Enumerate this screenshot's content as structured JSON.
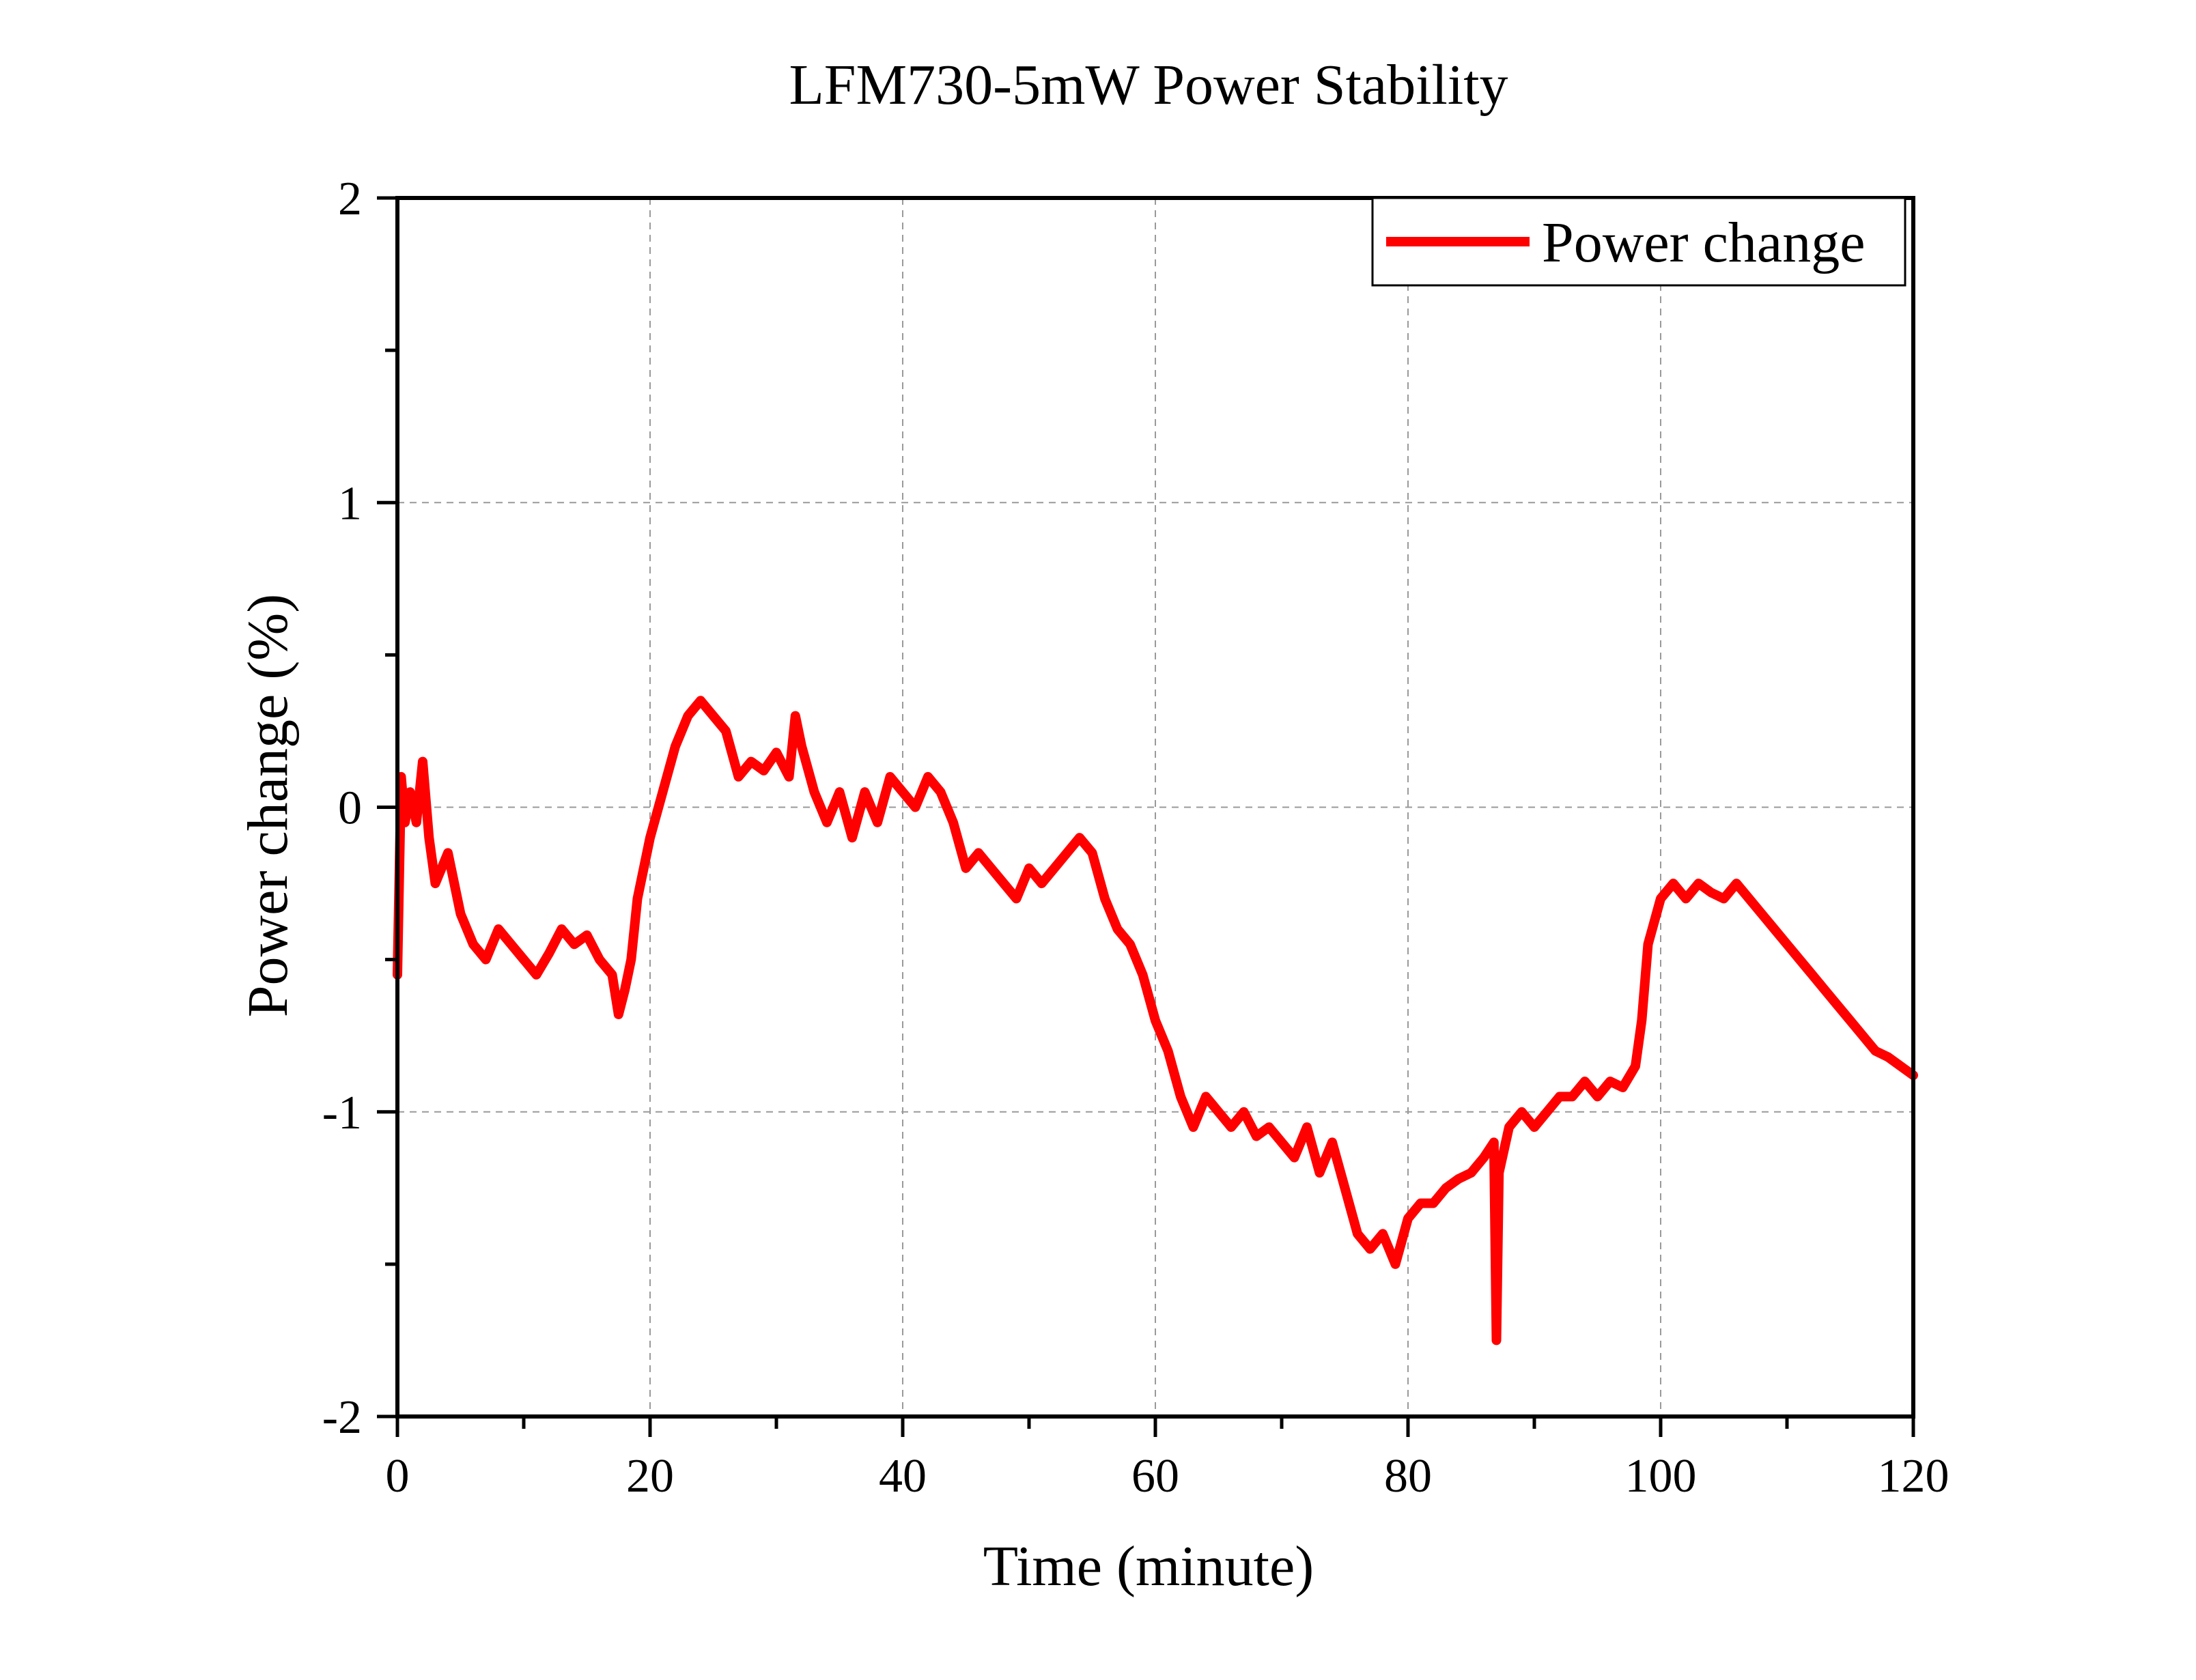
{
  "chart_data": {
    "type": "line",
    "title": "LFM730-5mW Power Stability",
    "xlabel": "Time (minute)",
    "ylabel": "Power change (%)",
    "xlim": [
      0,
      120
    ],
    "ylim": [
      -2,
      2
    ],
    "xticks": [
      0,
      20,
      40,
      60,
      80,
      100,
      120
    ],
    "xtick_labels": [
      "0",
      "20",
      "40",
      "60",
      "80",
      "100",
      "120"
    ],
    "yticks": [
      -2,
      -1,
      0,
      1,
      2
    ],
    "ytick_labels": [
      "-2",
      "-1",
      "0",
      "1",
      "2"
    ],
    "grid": true,
    "legend_position": "top-right",
    "series": [
      {
        "name": "Power change",
        "color": "#ff0000",
        "x": [
          0,
          0.3,
          0.6,
          1,
          1.5,
          2,
          2.5,
          3,
          4,
          5,
          6,
          7,
          8,
          9,
          10,
          11,
          12,
          13,
          14,
          15,
          16,
          17,
          17.5,
          18,
          18.5,
          19,
          20,
          21,
          22,
          23,
          24,
          25,
          26,
          27,
          28,
          29,
          30,
          31,
          31.5,
          32,
          33,
          34,
          35,
          36,
          37,
          38,
          39,
          40,
          41,
          42,
          43,
          44,
          45,
          46,
          47,
          48,
          49,
          50,
          51,
          52,
          53,
          54,
          55,
          56,
          57,
          58,
          59,
          60,
          61,
          62,
          63,
          64,
          65,
          66,
          67,
          68,
          69,
          70,
          71,
          72,
          73,
          74,
          75,
          76,
          77,
          78,
          79,
          80,
          81,
          82,
          83,
          84,
          85,
          86,
          86.8,
          87,
          87.2,
          88,
          89,
          90,
          91,
          92,
          93,
          94,
          95,
          96,
          97,
          98,
          98.5,
          99,
          100,
          101,
          102,
          103,
          104,
          105,
          106,
          107,
          108,
          109,
          110,
          111,
          112,
          113,
          114,
          115,
          116,
          117,
          118,
          119,
          120
        ],
        "y": [
          -0.55,
          0.1,
          -0.05,
          0.05,
          -0.05,
          0.15,
          -0.1,
          -0.25,
          -0.15,
          -0.35,
          -0.45,
          -0.5,
          -0.4,
          -0.45,
          -0.5,
          -0.55,
          -0.48,
          -0.4,
          -0.45,
          -0.42,
          -0.5,
          -0.55,
          -0.68,
          -0.6,
          -0.5,
          -0.3,
          -0.1,
          0.05,
          0.2,
          0.3,
          0.35,
          0.3,
          0.25,
          0.1,
          0.15,
          0.12,
          0.18,
          0.1,
          0.3,
          0.2,
          0.05,
          -0.05,
          0.05,
          -0.1,
          0.05,
          -0.05,
          0.1,
          0.05,
          0.0,
          0.1,
          0.05,
          -0.05,
          -0.2,
          -0.15,
          -0.2,
          -0.25,
          -0.3,
          -0.2,
          -0.25,
          -0.2,
          -0.15,
          -0.1,
          -0.15,
          -0.3,
          -0.4,
          -0.45,
          -0.55,
          -0.7,
          -0.8,
          -0.95,
          -1.05,
          -0.95,
          -1.0,
          -1.05,
          -1.0,
          -1.08,
          -1.05,
          -1.1,
          -1.15,
          -1.05,
          -1.2,
          -1.1,
          -1.25,
          -1.4,
          -1.45,
          -1.4,
          -1.5,
          -1.35,
          -1.3,
          -1.3,
          -1.25,
          -1.22,
          -1.2,
          -1.15,
          -1.1,
          -1.75,
          -1.2,
          -1.05,
          -1.0,
          -1.05,
          -1.0,
          -0.95,
          -0.95,
          -0.9,
          -0.95,
          -0.9,
          -0.92,
          -0.85,
          -0.7,
          -0.45,
          -0.3,
          -0.25,
          -0.3,
          -0.25,
          -0.28,
          -0.3,
          -0.25,
          -0.3,
          -0.35,
          -0.4,
          -0.45,
          -0.5,
          -0.55,
          -0.6,
          -0.65,
          -0.7,
          -0.75,
          -0.8,
          -0.82,
          -0.85,
          -0.88
        ]
      }
    ]
  }
}
